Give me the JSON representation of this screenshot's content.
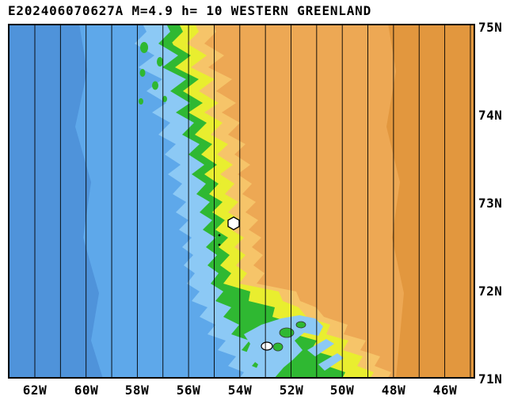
{
  "header": {
    "title": "E202406070627A M=4.9 h= 10 WESTERN GREENLAND",
    "event_id": "E202406070627A",
    "magnitude_label": "M=4.9",
    "depth_label": "h= 10",
    "region_name": "WESTERN GREENLAND"
  },
  "map": {
    "lat_labels": [
      "75N",
      "74N",
      "73N",
      "72N",
      "71N"
    ],
    "lon_labels": [
      "62W",
      "60W",
      "58W",
      "56W",
      "54W",
      "52W",
      "50W",
      "48W",
      "46W"
    ],
    "epicenter_symbol": "white-hexagon",
    "colors": {
      "ocean_deep": "#4f93da",
      "ocean_mid": "#5ea8ea",
      "ocean_shallow": "#8cc9f5",
      "coast_green": "#2fb832",
      "coast_yellow": "#e9ee2f",
      "orange_light": "#f6c469",
      "orange_main": "#eda854",
      "orange_dark": "#e2973e",
      "island_green": "#2fb832",
      "marker_fill": "#ffffff",
      "line": "#000000"
    }
  }
}
